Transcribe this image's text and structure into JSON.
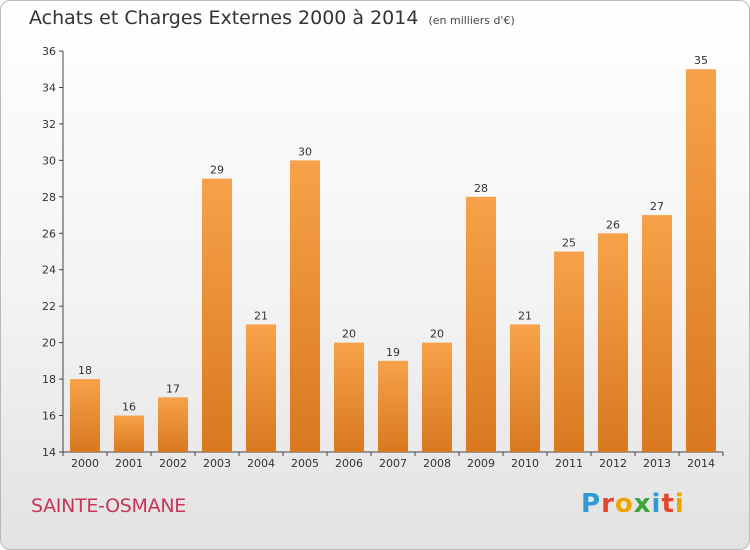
{
  "title": "Achats et Charges Externes 2000 à 2014",
  "unit": "(en milliers d'€)",
  "commune": "SAINTE-OSMANE",
  "logo": {
    "letters": [
      "P",
      "r",
      "o",
      "x",
      "i",
      "t",
      "i"
    ],
    "colors": [
      "#2e9bd6",
      "#e5462b",
      "#f0a400",
      "#3aa63a",
      "#2e9bd6",
      "#e5462b",
      "#f0a400"
    ]
  },
  "colors": {
    "bar_top": "#f7a24a",
    "bar_bottom": "#d9781f",
    "commune": "#c8345b"
  },
  "chart_data": {
    "type": "bar",
    "categories": [
      "2000",
      "2001",
      "2002",
      "2003",
      "2004",
      "2005",
      "2006",
      "2007",
      "2008",
      "2009",
      "2010",
      "2011",
      "2012",
      "2013",
      "2014"
    ],
    "values": [
      18,
      16,
      17,
      29,
      21,
      30,
      20,
      19,
      20,
      28,
      21,
      25,
      26,
      27,
      35
    ],
    "ylim": [
      14,
      36
    ],
    "yticks": [
      14,
      16,
      18,
      20,
      22,
      24,
      26,
      28,
      30,
      32,
      34,
      36
    ],
    "grid": false
  }
}
